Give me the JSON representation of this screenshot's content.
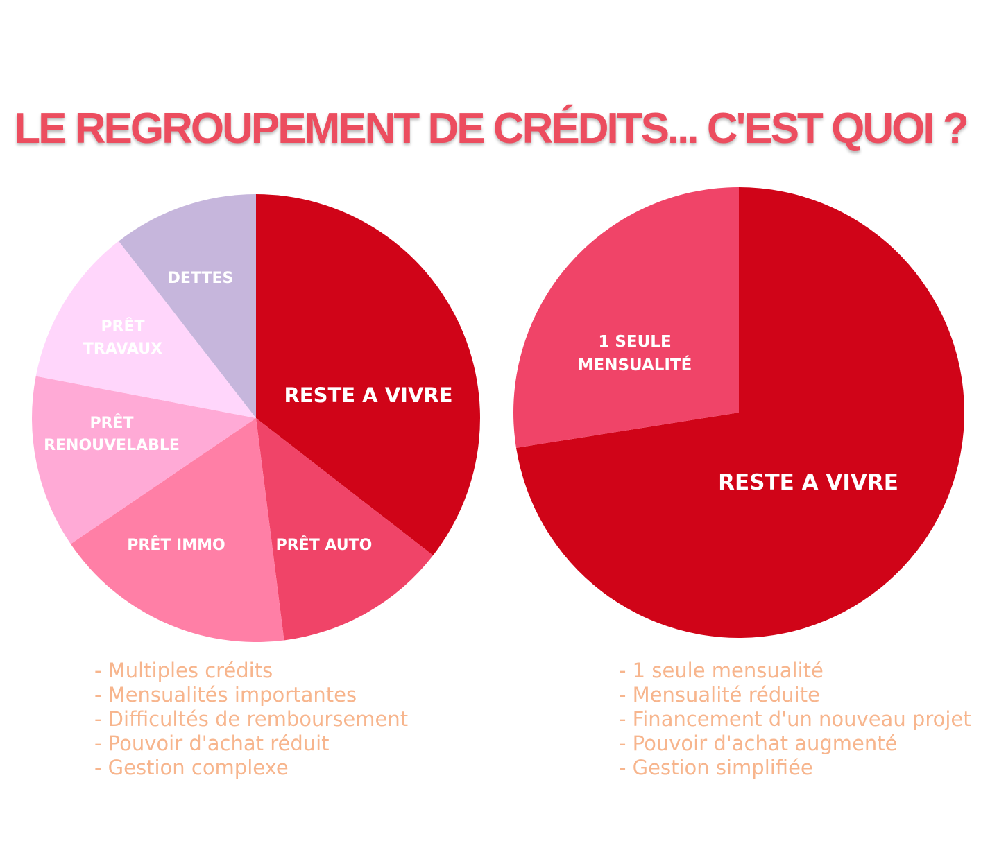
{
  "title": "LE REGROUPEMENT DE CRÉDITS... C'EST QUOI ?",
  "colors": {
    "title": "#ec4d5f",
    "reste": "#d00418",
    "pret_auto": "#f04468",
    "pret_immo": "#ff7fa6",
    "pret_renouvelable": "#ffaad6",
    "pret_travaux": "#ffd6fb",
    "dettes": "#c6b6dc",
    "mensualite": "#f04468",
    "notes": "#f7b58d"
  },
  "chart_data": [
    {
      "type": "pie",
      "title": "",
      "slices": [
        {
          "label": "RESTE A VIVRE",
          "value": 35.5,
          "color": "#d00418"
        },
        {
          "label": "PRÊT AUTO",
          "value": 12.5,
          "color": "#f04468"
        },
        {
          "label": "PRÊT IMMO",
          "value": 17.5,
          "color": "#ff7fa6"
        },
        {
          "label": "PRÊT RENOUVELABLE",
          "value": 12.5,
          "color": "#ffaad6"
        },
        {
          "label": "PRÊT TRAVAUX",
          "value": 11.5,
          "color": "#ffd6fb"
        },
        {
          "label": "DETTES",
          "value": 10.5,
          "color": "#c6b6dc"
        }
      ]
    },
    {
      "type": "pie",
      "title": "",
      "slices": [
        {
          "label": "RESTE A VIVRE",
          "value": 72.5,
          "color": "#d00418"
        },
        {
          "label": "1 SEULE MENSUALITÉ",
          "value": 27.5,
          "color": "#f04468"
        }
      ]
    }
  ],
  "labels": {
    "left": {
      "reste": "RESTE A VIVRE",
      "auto": "PRÊT AUTO",
      "immo": "PRÊT IMMO",
      "renouvelable_1": "PRÊT",
      "renouvelable_2": "RENOUVELABLE",
      "travaux_1": "PRÊT",
      "travaux_2": "TRAVAUX",
      "dettes": "DETTES"
    },
    "right": {
      "reste": "RESTE A VIVRE",
      "mensualite_1": "1 SEULE",
      "mensualite_2": "MENSUALITÉ"
    }
  },
  "notes_left": [
    "- Multiples crédits",
    "- Mensualités importantes",
    "- Difficultés de remboursement",
    "- Pouvoir d'achat réduit",
    "- Gestion complexe"
  ],
  "notes_right": [
    "- 1 seule mensualité",
    "- Mensualité réduite",
    "- Financement d'un nouveau projet",
    "- Pouvoir d'achat augmenté",
    "- Gestion simplifiée"
  ]
}
